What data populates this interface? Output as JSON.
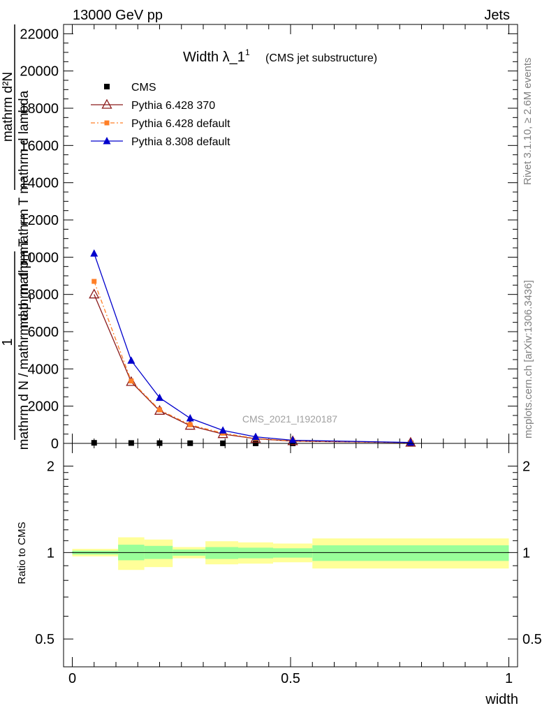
{
  "header": {
    "energy_label": "13000 GeV pp",
    "process_label": "Jets"
  },
  "side": {
    "rivet_label": "Rivet 3.1.10, ≥ 2.6M events",
    "mcplots_label": "mcplots.cern.ch [arXiv:1306.3436]"
  },
  "watermark": "CMS_2021_I1920187",
  "chart_data": [
    {
      "type": "line",
      "title_main": "Width λ_1",
      "title_sup": "1",
      "title_sub": "(CMS jet substructure)",
      "ylabel_top": "mathrm d²N",
      "ylabel_bottom": "mathrm d p_mathrm T mathrm d lambda",
      "ylabel_frac_num": "1",
      "ylabel_frac_den": "mathrm d N / mathrm d p_mathrm T",
      "xlim": [
        -0.02,
        1.02
      ],
      "ylim": [
        0,
        22500
      ],
      "yticks": [
        0,
        2000,
        4000,
        6000,
        8000,
        10000,
        12000,
        14000,
        16000,
        18000,
        20000,
        22000
      ],
      "ytick_labels": [
        "0",
        "2000",
        "4000",
        "6000",
        "8000",
        "10000",
        "12000",
        "14000",
        "16000",
        "18000",
        "20000",
        "22000"
      ],
      "legend_position": "top-left",
      "series": [
        {
          "name": "CMS",
          "color": "#000000",
          "marker": "square",
          "line": "none",
          "x": [
            0.05,
            0.135,
            0.2,
            0.27,
            0.345,
            0.42,
            0.505,
            0.775
          ],
          "y": [
            30,
            20,
            15,
            10,
            5,
            3,
            2,
            1
          ]
        },
        {
          "name": "Pythia 6.428 370",
          "color": "#8b1a1a",
          "marker": "open-triangle",
          "line": "solid",
          "x": [
            0.05,
            0.135,
            0.2,
            0.27,
            0.345,
            0.42,
            0.505,
            0.775
          ],
          "y": [
            8000,
            3300,
            1750,
            950,
            500,
            250,
            120,
            40
          ]
        },
        {
          "name": "Pythia 6.428 default",
          "color": "#ff7f27",
          "marker": "small-square",
          "line": "dashdot",
          "x": [
            0.05,
            0.135,
            0.2,
            0.27,
            0.345,
            0.42,
            0.505,
            0.775
          ],
          "y": [
            8700,
            3350,
            1800,
            1000,
            550,
            270,
            130,
            40
          ]
        },
        {
          "name": "Pythia 8.308 default",
          "color": "#0000cc",
          "marker": "triangle",
          "line": "solid",
          "x": [
            0.05,
            0.135,
            0.2,
            0.27,
            0.345,
            0.42,
            0.505,
            0.775
          ],
          "y": [
            10200,
            4450,
            2450,
            1350,
            700,
            350,
            170,
            50
          ]
        }
      ]
    },
    {
      "type": "area",
      "ylabel": "Ratio to CMS",
      "xlabel": "width",
      "xlim": [
        -0.02,
        1.02
      ],
      "ylim": [
        0.4,
        2.4
      ],
      "log_scale_y": true,
      "yticks": [
        0.5,
        1,
        2
      ],
      "ytick_labels": [
        "0.5",
        "1",
        "2"
      ],
      "xticks": [
        0,
        0.5,
        1
      ],
      "xtick_labels": [
        "0",
        "0.5",
        "1"
      ],
      "reference_line": 1,
      "bins": [
        {
          "xlo": 0.0,
          "xhi": 0.105,
          "stat_lo": 0.985,
          "stat_hi": 1.015,
          "tot_lo": 0.97,
          "tot_hi": 1.03
        },
        {
          "xlo": 0.105,
          "xhi": 0.165,
          "stat_lo": 0.94,
          "stat_hi": 1.065,
          "tot_lo": 0.87,
          "tot_hi": 1.13
        },
        {
          "xlo": 0.165,
          "xhi": 0.23,
          "stat_lo": 0.95,
          "stat_hi": 1.055,
          "tot_lo": 0.89,
          "tot_hi": 1.11
        },
        {
          "xlo": 0.23,
          "xhi": 0.305,
          "stat_lo": 0.975,
          "stat_hi": 1.025,
          "tot_lo": 0.955,
          "tot_hi": 1.045
        },
        {
          "xlo": 0.305,
          "xhi": 0.38,
          "stat_lo": 0.95,
          "stat_hi": 1.045,
          "tot_lo": 0.91,
          "tot_hi": 1.095
        },
        {
          "xlo": 0.38,
          "xhi": 0.46,
          "stat_lo": 0.955,
          "stat_hi": 1.04,
          "tot_lo": 0.915,
          "tot_hi": 1.085
        },
        {
          "xlo": 0.46,
          "xhi": 0.55,
          "stat_lo": 0.96,
          "stat_hi": 1.035,
          "tot_lo": 0.925,
          "tot_hi": 1.075
        },
        {
          "xlo": 0.55,
          "xhi": 1.0,
          "stat_lo": 0.935,
          "stat_hi": 1.06,
          "tot_lo": 0.88,
          "tot_hi": 1.12
        }
      ],
      "colors": {
        "stat": "#99ff99",
        "total": "#ffff99"
      }
    }
  ]
}
